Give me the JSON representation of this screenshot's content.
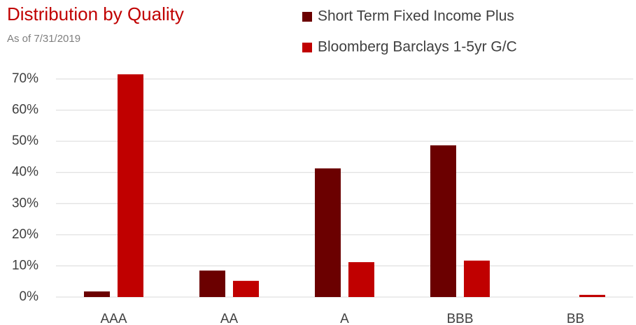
{
  "chart_data": {
    "type": "bar",
    "title": "Distribution by Quality",
    "subtitle": "As of 7/31/2019",
    "categories": [
      "AAA",
      "AA",
      "A",
      "BBB",
      "BB"
    ],
    "series": [
      {
        "name": "Short Term Fixed Income Plus",
        "color": "#6b0000",
        "values": [
          1.8,
          8.5,
          41.3,
          48.7,
          0
        ]
      },
      {
        "name": "Bloomberg Barclays 1-5yr G/C",
        "color": "#c00000",
        "values": [
          71.5,
          5.2,
          11.2,
          11.7,
          0.7
        ]
      }
    ],
    "ylim": [
      0,
      70
    ],
    "yticks": [
      {
        "value": 0,
        "label": "0%"
      },
      {
        "value": 10,
        "label": "10%"
      },
      {
        "value": 20,
        "label": "20%"
      },
      {
        "value": 30,
        "label": "30%"
      },
      {
        "value": 40,
        "label": "40%"
      },
      {
        "value": 50,
        "label": "50%"
      },
      {
        "value": 60,
        "label": "60%"
      },
      {
        "value": 70,
        "label": "70%"
      }
    ],
    "grid": true
  }
}
